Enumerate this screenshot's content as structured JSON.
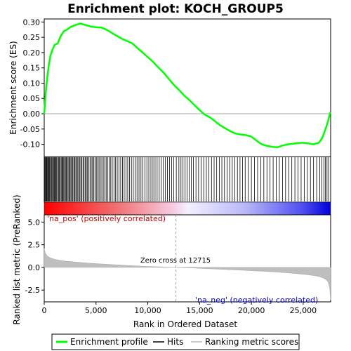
{
  "chart_data": {
    "type": "line",
    "title": "Enrichment plot: KOCH_GROUP5",
    "enrichment_panel": {
      "ylabel": "Enrichment score (ES)",
      "ylim": [
        -0.14,
        0.31
      ],
      "yticks": [
        -0.1,
        -0.05,
        0.0,
        0.05,
        0.1,
        0.15,
        0.2,
        0.25,
        0.3
      ],
      "ytick_labels": [
        "-0.10",
        "-0.05",
        "0.00",
        "0.05",
        "0.10",
        "0.15",
        "0.20",
        "0.25",
        "0.30"
      ],
      "series": [
        {
          "name": "Enrichment profile",
          "color": "#00ff00",
          "x": [
            0,
            150,
            300,
            450,
            600,
            800,
            1000,
            1300,
            1600,
            1900,
            2200,
            2600,
            3000,
            3500,
            4000,
            4500,
            5000,
            5500,
            6000,
            6500,
            7000,
            7500,
            8000,
            8500,
            9000,
            9500,
            10000,
            10500,
            11000,
            11500,
            12000,
            12500,
            13000,
            13500,
            14000,
            14500,
            15000,
            15500,
            16000,
            16500,
            17000,
            17500,
            18000,
            18500,
            19000,
            19500,
            20000,
            20500,
            21000,
            21500,
            22000,
            22500,
            23000,
            23500,
            24000,
            24500,
            25000,
            25500,
            26000,
            26500,
            26800,
            27000,
            27200,
            27400,
            27600
          ],
          "y": [
            0.0,
            0.07,
            0.12,
            0.16,
            0.19,
            0.21,
            0.225,
            0.23,
            0.255,
            0.27,
            0.275,
            0.285,
            0.29,
            0.295,
            0.29,
            0.285,
            0.283,
            0.282,
            0.275,
            0.265,
            0.255,
            0.245,
            0.238,
            0.23,
            0.215,
            0.2,
            0.185,
            0.17,
            0.152,
            0.135,
            0.115,
            0.095,
            0.078,
            0.06,
            0.045,
            0.028,
            0.012,
            -0.003,
            -0.012,
            -0.025,
            -0.038,
            -0.048,
            -0.058,
            -0.065,
            -0.068,
            -0.07,
            -0.075,
            -0.088,
            -0.1,
            -0.105,
            -0.108,
            -0.11,
            -0.104,
            -0.1,
            -0.098,
            -0.096,
            -0.095,
            -0.097,
            -0.1,
            -0.095,
            -0.082,
            -0.065,
            -0.045,
            -0.025,
            0.005
          ]
        }
      ]
    },
    "hits_panel": {
      "legend_name": "Hits",
      "hit_positions": [
        30,
        80,
        150,
        200,
        260,
        330,
        400,
        460,
        520,
        600,
        680,
        750,
        830,
        900,
        980,
        1050,
        1130,
        1200,
        1290,
        1380,
        1460,
        1550,
        1640,
        1720,
        1800,
        1880,
        1960,
        2050,
        2130,
        2220,
        2310,
        2400,
        2490,
        2580,
        2670,
        2760,
        2860,
        2950,
        3050,
        3140,
        3240,
        3340,
        3440,
        3540,
        3640,
        3750,
        3850,
        3960,
        4070,
        4180,
        4300,
        4420,
        4540,
        4660,
        4780,
        4900,
        5030,
        5160,
        5290,
        5420,
        5560,
        5700,
        5840,
        5980,
        6120,
        6270,
        6420,
        6570,
        6730,
        6890,
        7050,
        7210,
        7380,
        7550,
        7720,
        7890,
        8060,
        8240,
        8420,
        8600,
        8780,
        8960,
        9150,
        9340,
        9530,
        9720,
        9910,
        10100,
        10300,
        10500,
        10700,
        10900,
        11100,
        11300,
        11500,
        11700,
        11900,
        12100,
        12300,
        12500,
        12750,
        13000,
        13200,
        13400,
        13600,
        13800,
        14000,
        14200,
        14400,
        14650,
        14900,
        15150,
        15400,
        15650,
        15900,
        16150,
        16400,
        16650,
        16900,
        17150,
        17400,
        17650,
        17900,
        18150,
        18400,
        18650,
        18900,
        19150,
        19400,
        19700,
        20000,
        20300,
        20600,
        20900,
        21200,
        21500,
        21800,
        22100,
        22400,
        22700,
        23000,
        23300,
        23600,
        23900,
        24200,
        24500,
        24800,
        25100,
        25400,
        25700,
        26000,
        26300,
        26600,
        26800,
        27000,
        27150,
        27300,
        27450
      ]
    },
    "ranked_panel": {
      "ylabel": "Ranked list metric (PreRanked)",
      "legend_name": "Ranking metric scores",
      "ylim": [
        -3.8,
        5.8
      ],
      "yticks": [
        -2.5,
        0.0,
        2.5,
        5.0
      ],
      "ytick_labels": [
        "-2.5",
        "0.0",
        "2.5",
        "5.0"
      ],
      "x": [
        0,
        100,
        300,
        600,
        1000,
        1500,
        2000,
        3000,
        4000,
        5000,
        6000,
        7000,
        8000,
        9000,
        10000,
        11000,
        12000,
        12715,
        13500,
        14500,
        15500,
        16500,
        17500,
        18500,
        19500,
        20500,
        21500,
        22500,
        23500,
        24500,
        25500,
        26000,
        26500,
        26900,
        27200,
        27400,
        27550,
        27650
      ],
      "y": [
        2.1,
        1.6,
        1.25,
        1.05,
        0.9,
        0.78,
        0.7,
        0.6,
        0.5,
        0.42,
        0.35,
        0.28,
        0.22,
        0.16,
        0.11,
        0.07,
        0.03,
        0.0,
        -0.04,
        -0.08,
        -0.13,
        -0.18,
        -0.23,
        -0.28,
        -0.33,
        -0.39,
        -0.45,
        -0.52,
        -0.6,
        -0.7,
        -0.82,
        -0.9,
        -1.0,
        -1.15,
        -1.35,
        -1.6,
        -2.2,
        -3.6
      ],
      "label_pos": "'na_pos' (positively correlated)",
      "label_neg": "'na_neg' (negatively correlated)",
      "zero_cross_label": "Zero cross at 12715",
      "zero_cross": 12715
    },
    "xlabel": "Rank in Ordered Dataset",
    "xlim": [
      0,
      27650
    ],
    "xticks": [
      0,
      5000,
      10000,
      15000,
      20000,
      25000
    ],
    "xtick_labels": [
      "0",
      "5,000",
      "10,000",
      "15,000",
      "20,000",
      "25,000"
    ],
    "colors": {
      "enrichment": "#00ff00",
      "hits": "#000000",
      "ranking": "#bebebe",
      "pos_label": "#cc0000",
      "neg_label": "#0000cc",
      "heat_pos": "#ff0000",
      "heat_neg": "#0000ff"
    },
    "legend": {
      "placement": "bottom",
      "items": [
        "Enrichment profile",
        "Hits",
        "Ranking metric scores"
      ]
    }
  }
}
